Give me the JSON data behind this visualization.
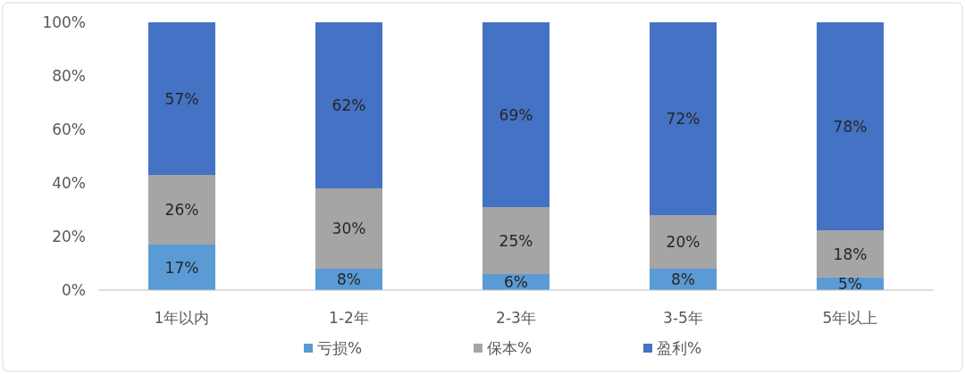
{
  "chart_data": {
    "type": "bar",
    "stacked": true,
    "legend": "bottom",
    "categories": [
      "1年以内",
      "1-2年",
      "2-3年",
      "3-5年",
      "5年以上"
    ],
    "ylim": [
      0,
      100
    ],
    "yticks": [
      {
        "value": 0,
        "label": "0%"
      },
      {
        "value": 20,
        "label": "20%"
      },
      {
        "value": 40,
        "label": "40%"
      },
      {
        "value": 60,
        "label": "60%"
      },
      {
        "value": 80,
        "label": "80%"
      },
      {
        "value": 100,
        "label": "100%"
      }
    ],
    "series": [
      {
        "name": "亏损%",
        "color": "#5b9bd5",
        "values": [
          17,
          8,
          6,
          8,
          4.7
        ],
        "value_labels": [
          "17%",
          "8%",
          "6%",
          "8%",
          "5%"
        ]
      },
      {
        "name": "保本%",
        "color": "#a5a5a5",
        "values": [
          26,
          30,
          25,
          20,
          17.6
        ],
        "value_labels": [
          "26%",
          "30%",
          "25%",
          "20%",
          "18%"
        ]
      },
      {
        "name": "盈利%",
        "color": "#4472c4",
        "values": [
          57,
          62,
          69,
          72,
          77.7
        ],
        "value_labels": [
          "57%",
          "62%",
          "69%",
          "72%",
          "78%"
        ]
      }
    ]
  }
}
